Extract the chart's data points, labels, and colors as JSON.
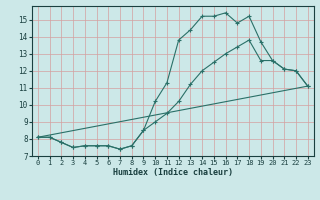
{
  "xlabel": "Humidex (Indice chaleur)",
  "background_color": "#cce8e8",
  "grid_color": "#b8d8d8",
  "line_color": "#2a7068",
  "ylim": [
    7,
    15.8
  ],
  "xlim": [
    -0.5,
    23.5
  ],
  "yticks": [
    7,
    8,
    9,
    10,
    11,
    12,
    13,
    14,
    15
  ],
  "xticks": [
    0,
    1,
    2,
    3,
    4,
    5,
    6,
    7,
    8,
    9,
    10,
    11,
    12,
    13,
    14,
    15,
    16,
    17,
    18,
    19,
    20,
    21,
    22,
    23
  ],
  "series1_x": [
    0,
    1,
    2,
    3,
    4,
    5,
    6,
    7,
    8,
    9,
    10,
    11,
    12,
    13,
    14,
    15,
    16,
    17,
    18,
    19,
    20,
    21,
    22,
    23
  ],
  "series1_y": [
    8.1,
    8.1,
    7.8,
    7.5,
    7.6,
    7.6,
    7.6,
    7.4,
    7.6,
    8.5,
    10.2,
    11.3,
    13.8,
    14.4,
    15.2,
    15.2,
    15.4,
    14.8,
    15.2,
    13.7,
    12.6,
    12.1,
    12.0,
    11.1
  ],
  "series2_x": [
    0,
    1,
    2,
    3,
    4,
    5,
    6,
    7,
    8,
    9,
    10,
    11,
    12,
    13,
    14,
    15,
    16,
    17,
    18,
    19,
    20,
    21,
    22,
    23
  ],
  "series2_y": [
    8.1,
    8.1,
    7.8,
    7.5,
    7.6,
    7.6,
    7.6,
    7.4,
    7.6,
    8.5,
    9.0,
    9.5,
    10.2,
    11.2,
    12.0,
    12.5,
    13.0,
    13.4,
    13.8,
    12.6,
    12.6,
    12.1,
    12.0,
    11.1
  ],
  "series3_x": [
    0,
    23
  ],
  "series3_y": [
    8.1,
    11.1
  ]
}
